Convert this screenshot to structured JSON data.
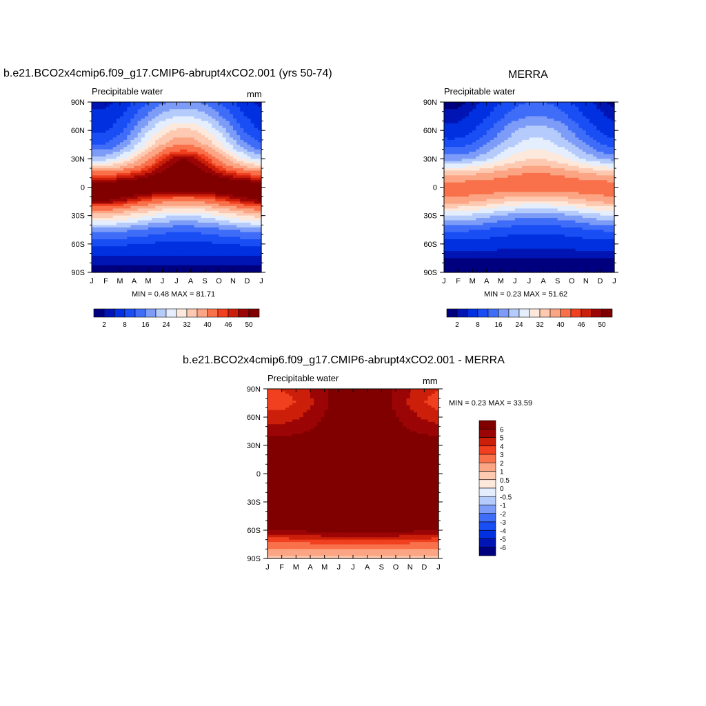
{
  "panels": [
    {
      "title": "b.e21.BCO2x4cmip6.f09_g17.CMIP6-abrupt4xCO2.001 (yrs 50-74)",
      "subtitle_left": "Precipitable water",
      "subtitle_right": "mm",
      "minmax": "MIN =   0.48 MAX =  81.71",
      "colorbar_labels": [
        "2",
        "8",
        "16",
        "24",
        "32",
        "40",
        "46",
        "50"
      ]
    },
    {
      "title": "MERRA",
      "subtitle_left": "Precipitable water",
      "subtitle_right": "",
      "minmax": "MIN =   0.23 MAX =  51.62",
      "colorbar_labels": [
        "2",
        "8",
        "16",
        "24",
        "32",
        "40",
        "46",
        "50"
      ]
    },
    {
      "title": "b.e21.BCO2x4cmip6.f09_g17.CMIP6-abrupt4xCO2.001 - MERRA",
      "subtitle_left": "Precipitable water",
      "subtitle_right": "mm",
      "minmax": "MIN =   0.23 MAX =  33.59",
      "colorbar_labels": [
        "6",
        "5",
        "4",
        "3",
        "2",
        "1",
        "0.5",
        "0",
        "-0.5",
        "-1",
        "-2",
        "-3",
        "-4",
        "-5",
        "-6"
      ]
    }
  ],
  "chart_data": [
    {
      "type": "heatmap",
      "title": "b.e21.BCO2x4cmip6.f09_g17.CMIP6-abrupt4xCO2.001 (yrs 50-74)",
      "subtitle": "Precipitable water",
      "units": "mm",
      "x_ticks": [
        "J",
        "F",
        "M",
        "A",
        "M",
        "J",
        "J",
        "A",
        "S",
        "O",
        "N",
        "D",
        "J"
      ],
      "y_ticks": [
        "90N",
        "60N",
        "30N",
        "0",
        "30S",
        "60S",
        "90S"
      ],
      "ylim": [
        -90,
        90
      ],
      "min": 0.48,
      "max": 81.71,
      "levels": [
        2,
        4,
        8,
        12,
        16,
        20,
        24,
        28,
        32,
        36,
        40,
        44,
        46,
        48,
        50
      ],
      "profile": {
        "lat": [
          90,
          75,
          60,
          45,
          30,
          15,
          0,
          -15,
          -30,
          -45,
          -60,
          -75,
          -90
        ],
        "month": [
          "Jan",
          "Jul"
        ],
        "values_jan": [
          3,
          5,
          7,
          12,
          22,
          42,
          55,
          50,
          34,
          18,
          9,
          3,
          1
        ],
        "values_jul": [
          17,
          24,
          33,
          40,
          50,
          52,
          55,
          40,
          24,
          13,
          7,
          3,
          1
        ]
      }
    },
    {
      "type": "heatmap",
      "title": "MERRA",
      "subtitle": "Precipitable water",
      "x_ticks": [
        "J",
        "F",
        "M",
        "A",
        "M",
        "J",
        "J",
        "A",
        "S",
        "O",
        "N",
        "D",
        "J"
      ],
      "y_ticks": [
        "90N",
        "60N",
        "30N",
        "0",
        "30S",
        "60S",
        "90S"
      ],
      "ylim": [
        -90,
        90
      ],
      "min": 0.23,
      "max": 51.62,
      "levels": [
        2,
        4,
        8,
        12,
        16,
        20,
        24,
        28,
        32,
        36,
        40,
        44,
        46,
        48,
        50
      ],
      "profile": {
        "lat": [
          90,
          75,
          60,
          45,
          30,
          15,
          0,
          -15,
          -30,
          -45,
          -60,
          -75,
          -90
        ],
        "month": [
          "Jan",
          "Jul"
        ],
        "values_jan": [
          1,
          3,
          5,
          10,
          18,
          34,
          44,
          38,
          24,
          13,
          6,
          2,
          1
        ],
        "values_jul": [
          12,
          16,
          22,
          26,
          32,
          40,
          44,
          31,
          17,
          9,
          5,
          2,
          1
        ]
      }
    },
    {
      "type": "heatmap",
      "title": "b.e21.BCO2x4cmip6.f09_g17.CMIP6-abrupt4xCO2.001 - MERRA",
      "subtitle": "Precipitable water",
      "units": "mm",
      "x_ticks": [
        "J",
        "F",
        "M",
        "A",
        "M",
        "J",
        "J",
        "A",
        "S",
        "O",
        "N",
        "D",
        "J"
      ],
      "y_ticks": [
        "90N",
        "60N",
        "30N",
        "0",
        "30S",
        "60S",
        "90S"
      ],
      "ylim": [
        -90,
        90
      ],
      "min": 0.23,
      "max": 33.59,
      "levels": [
        -6,
        -5,
        -4,
        -3,
        -2,
        -1,
        -0.5,
        0,
        0.5,
        1,
        2,
        3,
        4,
        5,
        6
      ],
      "profile": {
        "lat": [
          90,
          75,
          60,
          45,
          30,
          0,
          -30,
          -60,
          -75,
          -90
        ],
        "month": [
          "Jan",
          "Jul"
        ],
        "values_jan": [
          4,
          3.5,
          4.5,
          5.5,
          7,
          10,
          8,
          6,
          2.5,
          0.7
        ],
        "values_jul": [
          7,
          7,
          7,
          7,
          8,
          11,
          9,
          7,
          3,
          0.5
        ]
      }
    }
  ],
  "colors": {
    "palette": [
      "#00007f",
      "#0015b4",
      "#0030e0",
      "#1a4ef5",
      "#3f6df8",
      "#7d9cf8",
      "#b4cbfb",
      "#e4eefd",
      "#fde8dc",
      "#fdc9b1",
      "#fca584",
      "#f9714b",
      "#f04020",
      "#cc1f0a",
      "#9b0505",
      "#800000"
    ]
  }
}
